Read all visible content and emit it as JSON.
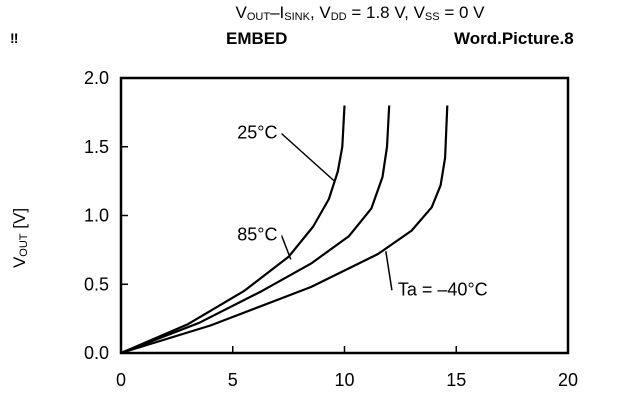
{
  "header": {
    "title_parts": [
      {
        "t": "V",
        "sub": false
      },
      {
        "t": "OUT",
        "sub": true
      },
      {
        "t": "–I",
        "sub": false
      },
      {
        "t": "SINK",
        "sub": true
      },
      {
        "t": ", V",
        "sub": false
      },
      {
        "t": "DD",
        "sub": true
      },
      {
        "t": " = 1.8 V, V",
        "sub": false
      },
      {
        "t": "SS",
        "sub": true
      },
      {
        "t": " = 0 V",
        "sub": false
      }
    ],
    "mark": "‼",
    "field_left": "EMBED",
    "field_right": "Word.Picture.8"
  },
  "chart_data": {
    "type": "line",
    "title": "VOUT–ISINK, VDD = 1.8 V, VSS = 0 V",
    "ylabel_parts": [
      {
        "t": "V",
        "sub": false
      },
      {
        "t": "OUT",
        "sub": true
      },
      {
        "t": " [V]",
        "sub": false
      }
    ],
    "xlabel": "",
    "xlim": [
      0,
      20
    ],
    "ylim": [
      0,
      2.0
    ],
    "xticks": [
      "0",
      "5",
      "10",
      "15",
      "20"
    ],
    "yticks": [
      "0.0",
      "0.5",
      "1.0",
      "1.5",
      "2.0"
    ],
    "grid": false,
    "series": [
      {
        "name": "25°C",
        "points": [
          [
            0,
            0
          ],
          [
            3,
            0.21
          ],
          [
            5.5,
            0.45
          ],
          [
            7.5,
            0.7
          ],
          [
            8.6,
            0.92
          ],
          [
            9.3,
            1.12
          ],
          [
            9.7,
            1.32
          ],
          [
            9.9,
            1.5
          ],
          [
            10.0,
            1.8
          ]
        ]
      },
      {
        "name": "85°C",
        "points": [
          [
            0,
            0
          ],
          [
            3.5,
            0.22
          ],
          [
            6.3,
            0.45
          ],
          [
            8.5,
            0.65
          ],
          [
            10.2,
            0.85
          ],
          [
            11.2,
            1.05
          ],
          [
            11.7,
            1.28
          ],
          [
            11.9,
            1.5
          ],
          [
            12.0,
            1.8
          ]
        ]
      },
      {
        "name": "Ta = –40°C",
        "points": [
          [
            0,
            0
          ],
          [
            4,
            0.2
          ],
          [
            8.5,
            0.48
          ],
          [
            11.5,
            0.72
          ],
          [
            13.0,
            0.89
          ],
          [
            13.9,
            1.06
          ],
          [
            14.3,
            1.22
          ],
          [
            14.5,
            1.42
          ],
          [
            14.6,
            1.8
          ]
        ]
      }
    ],
    "annotations": [
      {
        "text": "25°C",
        "label_at": [
          7.0,
          1.56
        ],
        "pointer_to": [
          9.55,
          1.25
        ]
      },
      {
        "text": "85°C",
        "label_at": [
          7.0,
          0.82
        ],
        "pointer_to": [
          7.6,
          0.68
        ]
      },
      {
        "text": "Ta = –40°C",
        "label_at": [
          12.3,
          0.42
        ],
        "pointer_to": [
          11.85,
          0.74
        ]
      }
    ]
  }
}
